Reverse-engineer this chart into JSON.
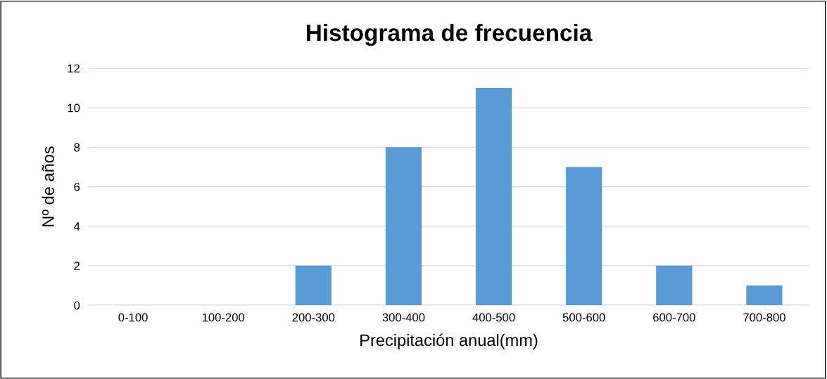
{
  "chart_data": {
    "type": "bar",
    "title": "Histograma de frecuencia",
    "xlabel": "Precipitación anual(mm)",
    "ylabel": "Nº de años",
    "categories": [
      "0-100",
      "100-200",
      "200-300",
      "300-400",
      "400-500",
      "500-600",
      "600-700",
      "700-800"
    ],
    "values": [
      0,
      0,
      2,
      8,
      11,
      7,
      2,
      1
    ],
    "color": "#5b9bd5",
    "ylim": [
      0,
      12
    ],
    "yticks": [
      0,
      2,
      4,
      6,
      8,
      10,
      12
    ],
    "grid": "y",
    "legend": false
  }
}
